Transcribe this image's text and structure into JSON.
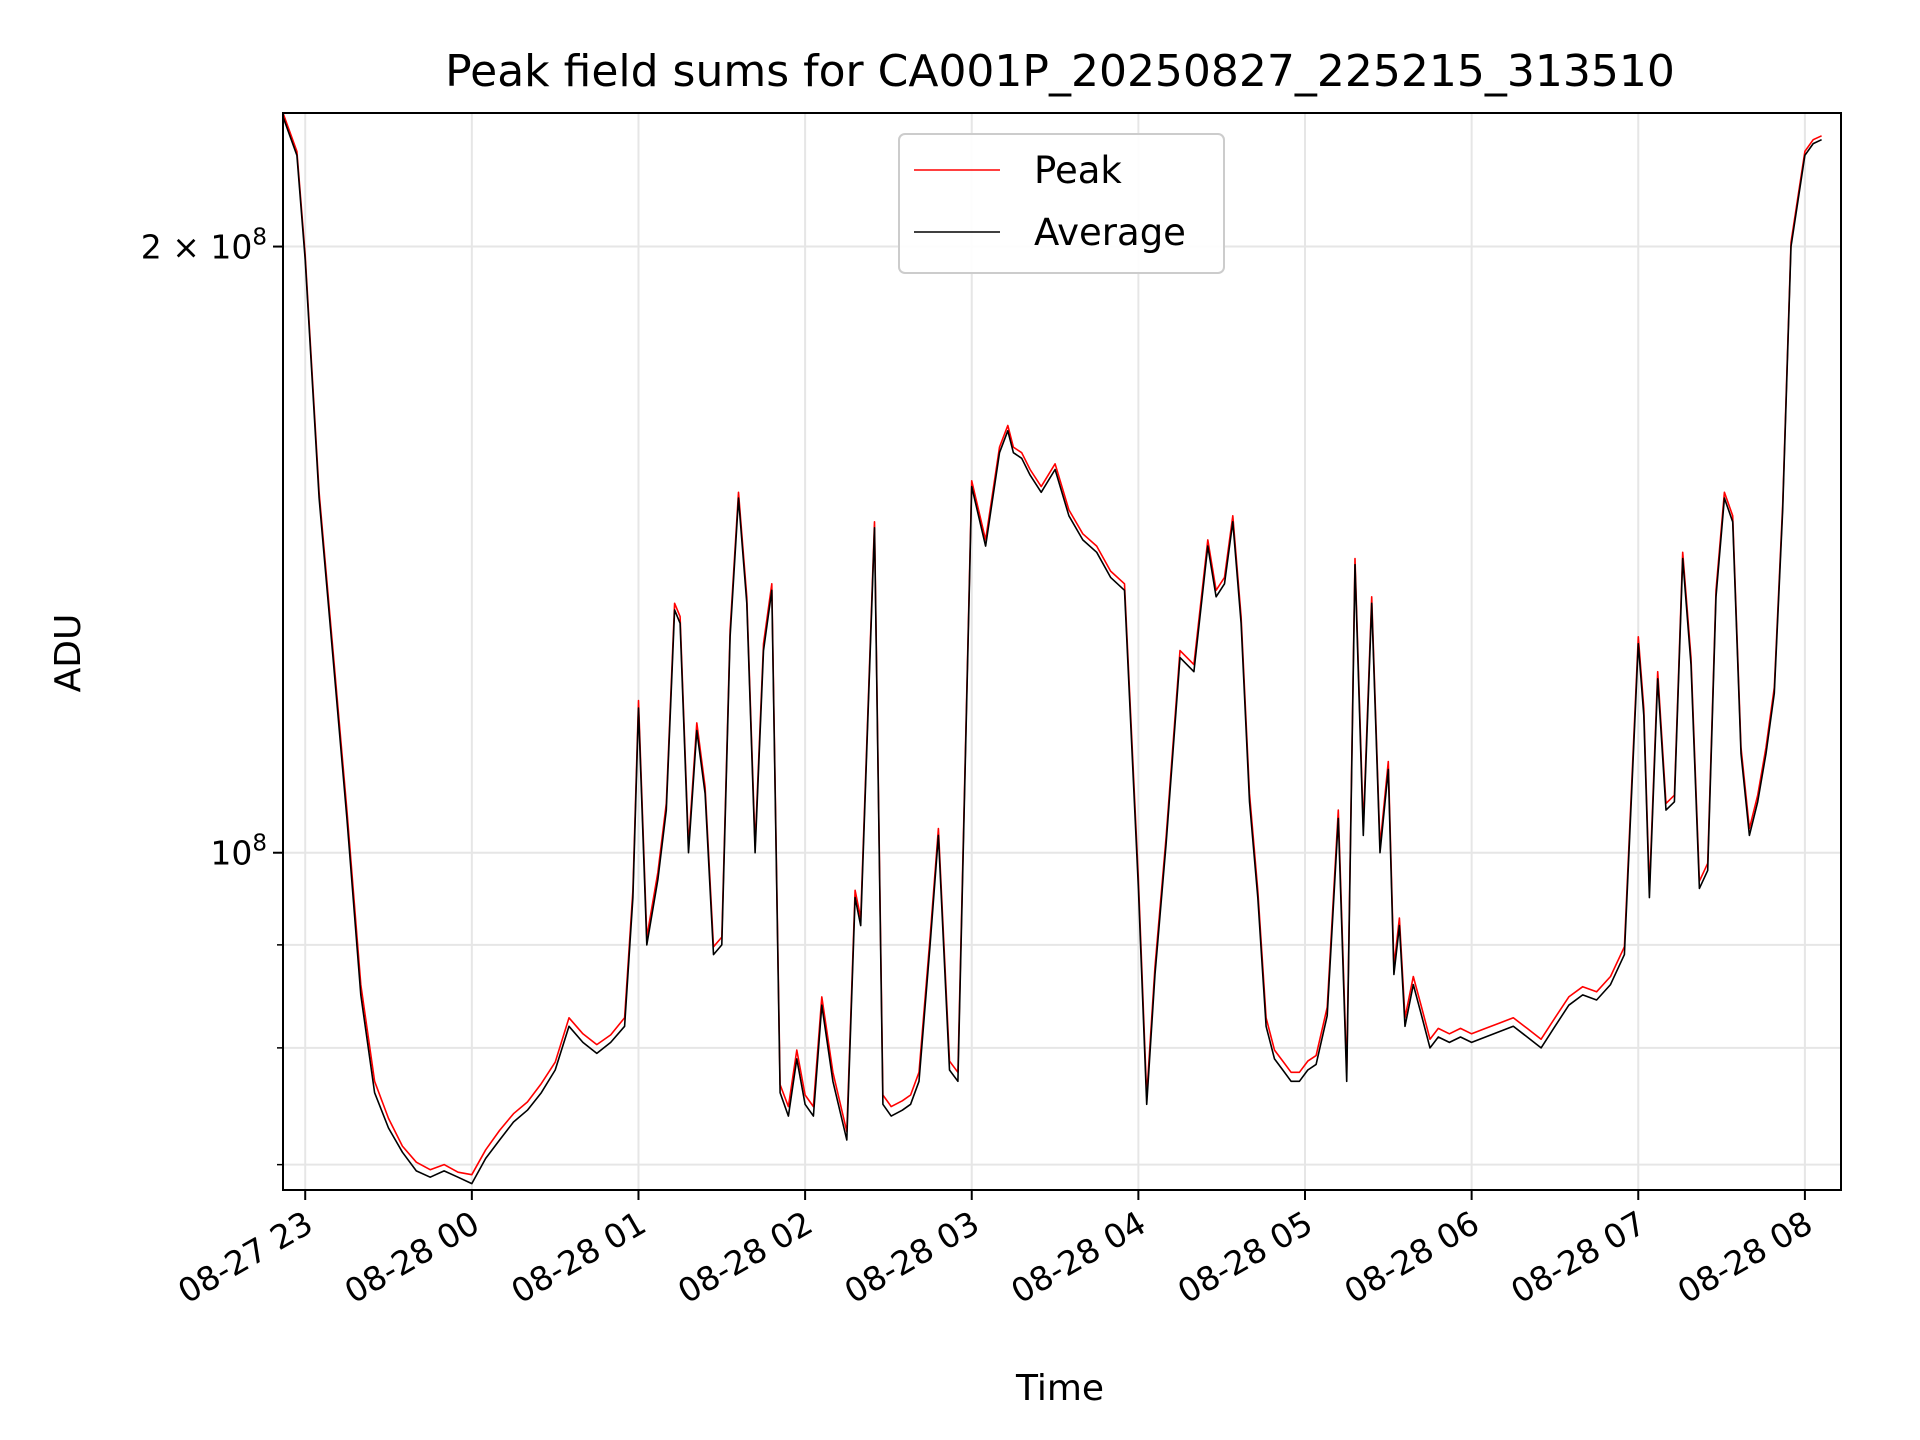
{
  "chart_data": {
    "type": "line",
    "title": "Peak field sums for CA001P_20250827_225215_313510",
    "xlabel": "Time",
    "ylabel": "ADU",
    "y_scale": "log",
    "ylim": [
      68000000,
      233000000
    ],
    "xlim": [
      "2025-08-27 22:52",
      "2025-08-28 08:13"
    ],
    "grid": true,
    "legend": "upper center",
    "x_ticks": [
      "08-27 23",
      "08-28 00",
      "08-28 01",
      "08-28 02",
      "08-28 03",
      "08-28 04",
      "08-28 05",
      "08-28 06",
      "08-28 07",
      "08-28 08"
    ],
    "y_ticks": [
      {
        "label_base": "2 × 10",
        "label_exp": "8",
        "value": 200000000
      },
      {
        "label_base": "10",
        "label_exp": "8",
        "value": 100000000
      }
    ],
    "series": [
      {
        "name": "Peak",
        "color": "#ff0000"
      },
      {
        "name": "Average",
        "color": "#000000"
      }
    ],
    "x": [
      "2025-08-27 22:52",
      "2025-08-27 22:57",
      "2025-08-27 23:00",
      "2025-08-27 23:05",
      "2025-08-27 23:10",
      "2025-08-27 23:15",
      "2025-08-27 23:20",
      "2025-08-27 23:25",
      "2025-08-27 23:30",
      "2025-08-27 23:35",
      "2025-08-27 23:40",
      "2025-08-27 23:45",
      "2025-08-27 23:50",
      "2025-08-27 23:55",
      "2025-08-28 00:00",
      "2025-08-28 00:05",
      "2025-08-28 00:10",
      "2025-08-28 00:15",
      "2025-08-28 00:20",
      "2025-08-28 00:25",
      "2025-08-28 00:30",
      "2025-08-28 00:35",
      "2025-08-28 00:40",
      "2025-08-28 00:45",
      "2025-08-28 00:50",
      "2025-08-28 00:55",
      "2025-08-28 00:58",
      "2025-08-28 01:00",
      "2025-08-28 01:03",
      "2025-08-28 01:07",
      "2025-08-28 01:10",
      "2025-08-28 01:13",
      "2025-08-28 01:15",
      "2025-08-28 01:18",
      "2025-08-28 01:21",
      "2025-08-28 01:24",
      "2025-08-28 01:27",
      "2025-08-28 01:30",
      "2025-08-28 01:33",
      "2025-08-28 01:36",
      "2025-08-28 01:39",
      "2025-08-28 01:42",
      "2025-08-28 01:45",
      "2025-08-28 01:48",
      "2025-08-28 01:51",
      "2025-08-28 01:54",
      "2025-08-28 01:57",
      "2025-08-28 02:00",
      "2025-08-28 02:03",
      "2025-08-28 02:06",
      "2025-08-28 02:10",
      "2025-08-28 02:15",
      "2025-08-28 02:18",
      "2025-08-28 02:20",
      "2025-08-28 02:25",
      "2025-08-28 02:28",
      "2025-08-28 02:31",
      "2025-08-28 02:35",
      "2025-08-28 02:38",
      "2025-08-28 02:41",
      "2025-08-28 02:45",
      "2025-08-28 02:48",
      "2025-08-28 02:52",
      "2025-08-28 02:55",
      "2025-08-28 03:00",
      "2025-08-28 03:05",
      "2025-08-28 03:10",
      "2025-08-28 03:13",
      "2025-08-28 03:15",
      "2025-08-28 03:18",
      "2025-08-28 03:21",
      "2025-08-28 03:25",
      "2025-08-28 03:30",
      "2025-08-28 03:35",
      "2025-08-28 03:40",
      "2025-08-28 03:45",
      "2025-08-28 03:50",
      "2025-08-28 03:55",
      "2025-08-28 04:00",
      "2025-08-28 04:03",
      "2025-08-28 04:06",
      "2025-08-28 04:10",
      "2025-08-28 04:15",
      "2025-08-28 04:20",
      "2025-08-28 04:25",
      "2025-08-28 04:28",
      "2025-08-28 04:31",
      "2025-08-28 04:34",
      "2025-08-28 04:37",
      "2025-08-28 04:40",
      "2025-08-28 04:43",
      "2025-08-28 04:46",
      "2025-08-28 04:49",
      "2025-08-28 04:52",
      "2025-08-28 04:55",
      "2025-08-28 04:58",
      "2025-08-28 05:01",
      "2025-08-28 05:04",
      "2025-08-28 05:08",
      "2025-08-28 05:12",
      "2025-08-28 05:15",
      "2025-08-28 05:18",
      "2025-08-28 05:21",
      "2025-08-28 05:24",
      "2025-08-28 05:27",
      "2025-08-28 05:30",
      "2025-08-28 05:32",
      "2025-08-28 05:34",
      "2025-08-28 05:36",
      "2025-08-28 05:39",
      "2025-08-28 05:42",
      "2025-08-28 05:45",
      "2025-08-28 05:48",
      "2025-08-28 05:52",
      "2025-08-28 05:56",
      "2025-08-28 06:00",
      "2025-08-28 06:05",
      "2025-08-28 06:10",
      "2025-08-28 06:15",
      "2025-08-28 06:20",
      "2025-08-28 06:25",
      "2025-08-28 06:30",
      "2025-08-28 06:35",
      "2025-08-28 06:40",
      "2025-08-28 06:45",
      "2025-08-28 06:50",
      "2025-08-28 06:55",
      "2025-08-28 07:00",
      "2025-08-28 07:02",
      "2025-08-28 07:04",
      "2025-08-28 07:07",
      "2025-08-28 07:10",
      "2025-08-28 07:13",
      "2025-08-28 07:16",
      "2025-08-28 07:19",
      "2025-08-28 07:22",
      "2025-08-28 07:25",
      "2025-08-28 07:28",
      "2025-08-28 07:31",
      "2025-08-28 07:34",
      "2025-08-28 07:37",
      "2025-08-28 07:40",
      "2025-08-28 07:43",
      "2025-08-28 07:46",
      "2025-08-28 07:49",
      "2025-08-28 07:52",
      "2025-08-28 07:55",
      "2025-08-28 08:00",
      "2025-08-28 08:03",
      "2025-08-28 08:06",
      "2025-08-28 08:10",
      "2025-08-28 08:13"
    ],
    "average": [
      232000000,
      222000000,
      197000000,
      150000000,
      125000000,
      104000000,
      85000000,
      76000000,
      73000000,
      71000000,
      69500000,
      69000000,
      69500000,
      69000000,
      68500000,
      70500000,
      72000000,
      73500000,
      74500000,
      76000000,
      78000000,
      82000000,
      80500000,
      79500000,
      80500000,
      82000000,
      95000000,
      118000000,
      90000000,
      97000000,
      105000000,
      132000000,
      130000000,
      100000000,
      115000000,
      107000000,
      89000000,
      90000000,
      128000000,
      150000000,
      133000000,
      100000000,
      126000000,
      135000000,
      76000000,
      74000000,
      79000000,
      75000000,
      74000000,
      84000000,
      77000000,
      72000000,
      95000000,
      92000000,
      145000000,
      75000000,
      74000000,
      74500000,
      75000000,
      77000000,
      90000000,
      102000000,
      78000000,
      77000000,
      152000000,
      142000000,
      158000000,
      162000000,
      158000000,
      157000000,
      154000000,
      151000000,
      155000000,
      147000000,
      143000000,
      141000000,
      137000000,
      135000000,
      96000000,
      75000000,
      87000000,
      101000000,
      125000000,
      123000000,
      142000000,
      134000000,
      136000000,
      146000000,
      130000000,
      106000000,
      95000000,
      82000000,
      79000000,
      78000000,
      77000000,
      77000000,
      78000000,
      78500000,
      83000000,
      104000000,
      77000000,
      139000000,
      102000000,
      133000000,
      100000000,
      110000000,
      87000000,
      92000000,
      82000000,
      86000000,
      83000000,
      80000000,
      81000000,
      80500000,
      81000000,
      80500000,
      81000000,
      81500000,
      82000000,
      81000000,
      80000000,
      82000000,
      84000000,
      85000000,
      84500000,
      86000000,
      89000000,
      127000000,
      117000000,
      95000000,
      122000000,
      105000000,
      106000000,
      140000000,
      124000000,
      96000000,
      98000000,
      134000000,
      150000000,
      146000000,
      112000000,
      102000000,
      106000000,
      112000000,
      120000000,
      148000000,
      200000000,
      222000000,
      225000000,
      226000000
    ],
    "peak": [
      233000000,
      223000000,
      198000000,
      151000000,
      126000000,
      105000000,
      86000000,
      77000000,
      73800000,
      71500000,
      70200000,
      69600000,
      70000000,
      69400000,
      69200000,
      71200000,
      72800000,
      74200000,
      75200000,
      76800000,
      78700000,
      82800000,
      81300000,
      80300000,
      81200000,
      82800000,
      95800000,
      119000000,
      90800000,
      97800000,
      105800000,
      133000000,
      131000000,
      100800000,
      116000000,
      107800000,
      89800000,
      90800000,
      129000000,
      151000000,
      134000000,
      100800000,
      127000000,
      136000000,
      76700000,
      74800000,
      79800000,
      75800000,
      74800000,
      84800000,
      77800000,
      72700000,
      95800000,
      92800000,
      146000000,
      75800000,
      74800000,
      75300000,
      75800000,
      77800000,
      90800000,
      102800000,
      78800000,
      77800000,
      153000000,
      143000000,
      159000000,
      163000000,
      159000000,
      158000000,
      155000000,
      152000000,
      156000000,
      148000000,
      144000000,
      142000000,
      138000000,
      136000000,
      97000000,
      75700000,
      87800000,
      101800000,
      126000000,
      124000000,
      143000000,
      135000000,
      137000000,
      147000000,
      131000000,
      107000000,
      95800000,
      82800000,
      79800000,
      78800000,
      77800000,
      77800000,
      78800000,
      79300000,
      83800000,
      105000000,
      77800000,
      140000000,
      103000000,
      134000000,
      100800000,
      111000000,
      87800000,
      92800000,
      82800000,
      86800000,
      83800000,
      80800000,
      81800000,
      81300000,
      81800000,
      81300000,
      81800000,
      82300000,
      82800000,
      81800000,
      80800000,
      82800000,
      84800000,
      85800000,
      85300000,
      86800000,
      89800000,
      128000000,
      118000000,
      95800000,
      123000000,
      105800000,
      106800000,
      141000000,
      125000000,
      96800000,
      98800000,
      135000000,
      151000000,
      147000000,
      112800000,
      102800000,
      106800000,
      112800000,
      120800000,
      149000000,
      201000000,
      223000000,
      226000000,
      227000000
    ]
  }
}
